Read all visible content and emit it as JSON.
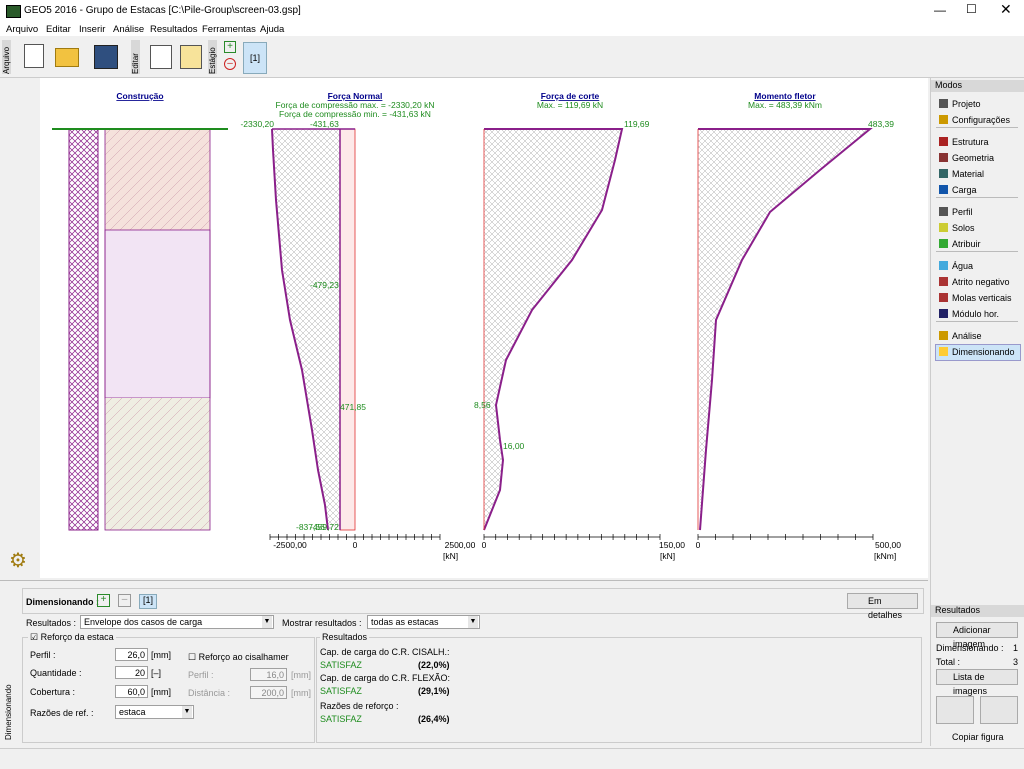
{
  "title_bar": {
    "title": "GEO5 2016 - Grupo de Estacas [C:\\Pile-Group\\screen-03.gsp]"
  },
  "menu": [
    "Arquivo",
    "Editar",
    "Inserir",
    "Análise",
    "Resultados",
    "Ferramentas",
    "Ajuda"
  ],
  "toolbar": {
    "file_label": "Arquivo",
    "edit_label": "Editar",
    "stage_label": "Estágio",
    "stage": "[1]"
  },
  "drawing": {
    "construction": {
      "title": "Construção"
    },
    "normal_force": {
      "title": "Força Normal",
      "max": "Força de compressão max. = -2330,20 kN",
      "min": "Força de compressão min. = -431,63 kN",
      "labels": [
        "-2330,20",
        "-431,63",
        "-479,23",
        "471,85",
        "-837,56",
        "-459,72"
      ],
      "axis": [
        "-2500,00",
        "0",
        "2500,00"
      ],
      "unit": "[kN]"
    },
    "shear_force": {
      "title": "Força de corte",
      "max": "Max. = 119,69 kN",
      "labels": [
        "119,69",
        "8,56",
        "16,00"
      ],
      "axis": [
        "0",
        "150,00"
      ],
      "unit": "[kN]"
    },
    "bending_moment": {
      "title": "Momento fletor",
      "max": "Max. = 483,39 kNm",
      "labels": [
        "483,39"
      ],
      "axis": [
        "0",
        "500,00"
      ],
      "unit": "[kNm]"
    }
  },
  "modes": {
    "title": "Modos",
    "groups": [
      [
        "Projeto",
        "Configurações"
      ],
      [
        "Estrutura",
        "Geometria",
        "Material",
        "Carga"
      ],
      [
        "Perfil",
        "Solos",
        "Atribuir"
      ],
      [
        "Água",
        "Atrito negativo",
        "Molas verticais",
        "Módulo hor."
      ],
      [
        "Análise",
        "Dimensionando"
      ]
    ]
  },
  "results_panel": {
    "title": "Resultados",
    "add_image": "Adicionar imagem",
    "dim_label": "Dimensionando :",
    "dim_count": "1",
    "total_label": "Total :",
    "total_count": "3",
    "image_list": "Lista de imagens",
    "copy": "Copiar figura"
  },
  "bottom": {
    "side_label": "Dimensionando",
    "header": "Dimensionando :",
    "stage": "[1]",
    "details": "Em detalhes",
    "results_label": "Resultados :",
    "results_value": "Envelope dos casos de carga",
    "show_label": "Mostrar resultados :",
    "show_value": "todas as estacas",
    "reinforcement": {
      "title": "Reforço da estaca",
      "profile_label": "Perfil :",
      "profile": "26,0",
      "profile_unit": "[mm]",
      "count_label": "Quantidade :",
      "count": "20",
      "count_unit": "[–]",
      "cover_label": "Cobertura :",
      "cover": "60,0",
      "cover_unit": "[mm]",
      "ratio_label": "Razões de ref. :",
      "ratio": "estaca"
    },
    "shear": {
      "title": "Reforço ao cisalhamer",
      "profile_label": "Perfil :",
      "profile": "16,0",
      "profile_unit": "[mm]",
      "spacing_label": "Distância :",
      "spacing": "200,0",
      "spacing_unit": "[mm]"
    },
    "results": {
      "title": "Resultados",
      "rows": [
        [
          "Cap. de carga do C.R. CISALH.:",
          "SATISFAZ",
          "(22,0%)"
        ],
        [
          "Cap. de carga do C.R. FLEXÃO:",
          "SATISFAZ",
          "(29,1%)"
        ],
        [
          "Razões de reforço :",
          "SATISFAZ",
          "(26,4%)"
        ]
      ]
    }
  }
}
